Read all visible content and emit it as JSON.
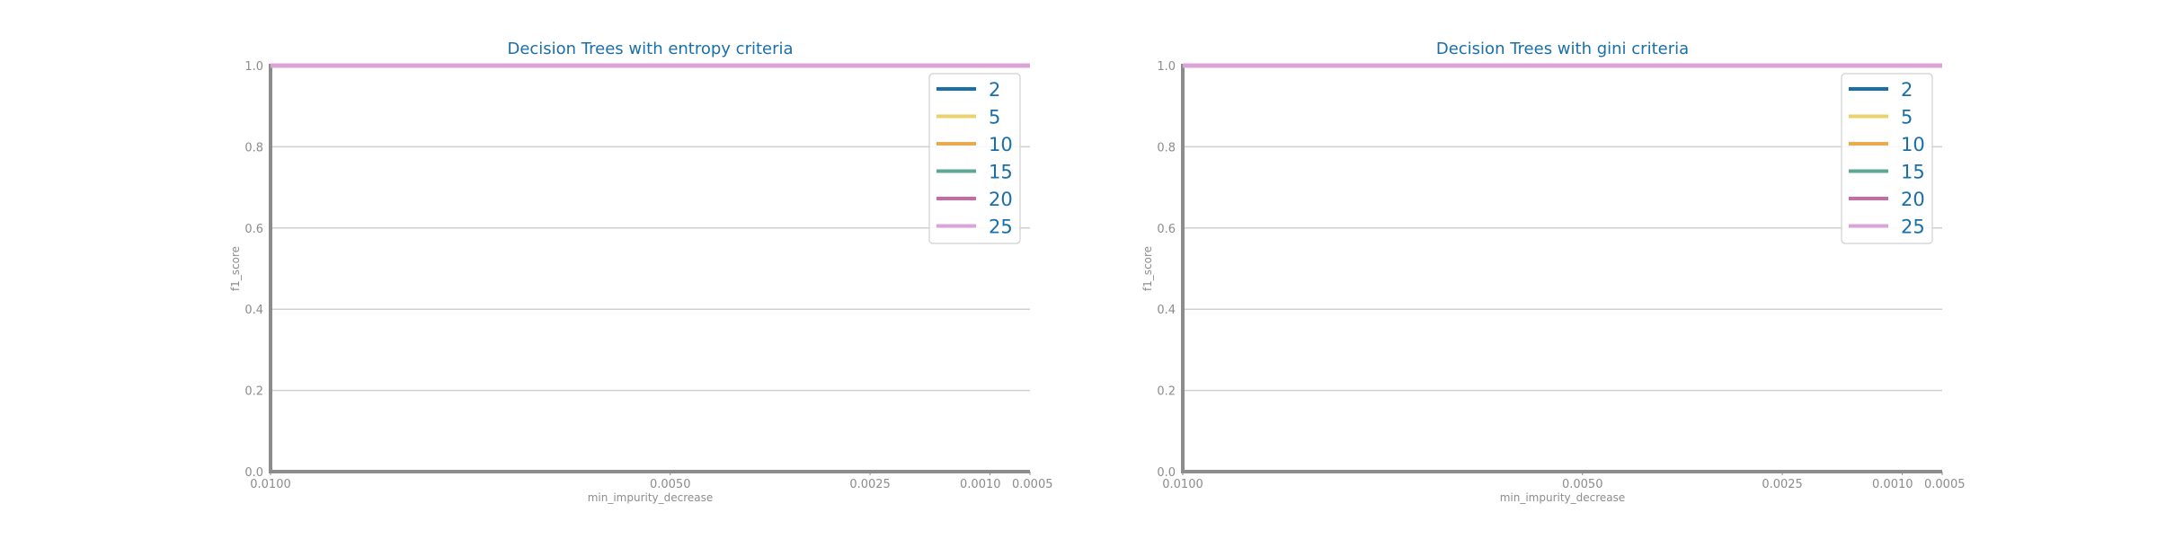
{
  "colors": {
    "grid": "#cfcfcf",
    "spine": "#8c8c8c",
    "title": "#1a6fa8",
    "tick": "#8c8c8c",
    "series": [
      "#1a6fa8",
      "#ecd26d",
      "#ebaa4b",
      "#5ea795",
      "#c76aa5",
      "#dba4d8"
    ]
  },
  "chart_data": [
    {
      "type": "line",
      "title": "Decision Trees with entropy criteria",
      "xlabel": "min_impurity_decrease",
      "ylabel": "f1_score",
      "x": [
        0.01,
        0.005,
        0.0025,
        0.001,
        0.0005
      ],
      "x_tick_labels": [
        "0.0100",
        "0.0050",
        "0.0025",
        "0.0010",
        "0.0005"
      ],
      "x_reversed": true,
      "ylim": [
        0.0,
        1.0
      ],
      "y_ticks": [
        "0.0",
        "0.2",
        "0.4",
        "0.6",
        "0.8",
        "1.0"
      ],
      "grid": "horizontal",
      "legend_position": "top-right",
      "series": [
        {
          "name": "2",
          "values": [
            1.0,
            1.0,
            1.0,
            1.0,
            1.0
          ]
        },
        {
          "name": "5",
          "values": [
            1.0,
            1.0,
            1.0,
            1.0,
            1.0
          ]
        },
        {
          "name": "10",
          "values": [
            1.0,
            1.0,
            1.0,
            1.0,
            1.0
          ]
        },
        {
          "name": "15",
          "values": [
            1.0,
            1.0,
            1.0,
            1.0,
            1.0
          ]
        },
        {
          "name": "20",
          "values": [
            1.0,
            1.0,
            1.0,
            1.0,
            1.0
          ]
        },
        {
          "name": "25",
          "values": [
            1.0,
            1.0,
            1.0,
            1.0,
            1.0
          ]
        }
      ]
    },
    {
      "type": "line",
      "title": "Decision Trees with gini criteria",
      "xlabel": "min_impurity_decrease",
      "ylabel": "f1_score",
      "x": [
        0.01,
        0.005,
        0.0025,
        0.001,
        0.0005
      ],
      "x_tick_labels": [
        "0.0100",
        "0.0050",
        "0.0025",
        "0.0010",
        "0.0005"
      ],
      "x_reversed": true,
      "ylim": [
        0.0,
        1.0
      ],
      "y_ticks": [
        "0.0",
        "0.2",
        "0.4",
        "0.6",
        "0.8",
        "1.0"
      ],
      "grid": "horizontal",
      "legend_position": "top-right",
      "series": [
        {
          "name": "2",
          "values": [
            1.0,
            1.0,
            1.0,
            1.0,
            1.0
          ]
        },
        {
          "name": "5",
          "values": [
            1.0,
            1.0,
            1.0,
            1.0,
            1.0
          ]
        },
        {
          "name": "10",
          "values": [
            1.0,
            1.0,
            1.0,
            1.0,
            1.0
          ]
        },
        {
          "name": "15",
          "values": [
            1.0,
            1.0,
            1.0,
            1.0,
            1.0
          ]
        },
        {
          "name": "20",
          "values": [
            1.0,
            1.0,
            1.0,
            1.0,
            1.0
          ]
        },
        {
          "name": "25",
          "values": [
            1.0,
            1.0,
            1.0,
            1.0,
            1.0
          ]
        }
      ]
    }
  ]
}
